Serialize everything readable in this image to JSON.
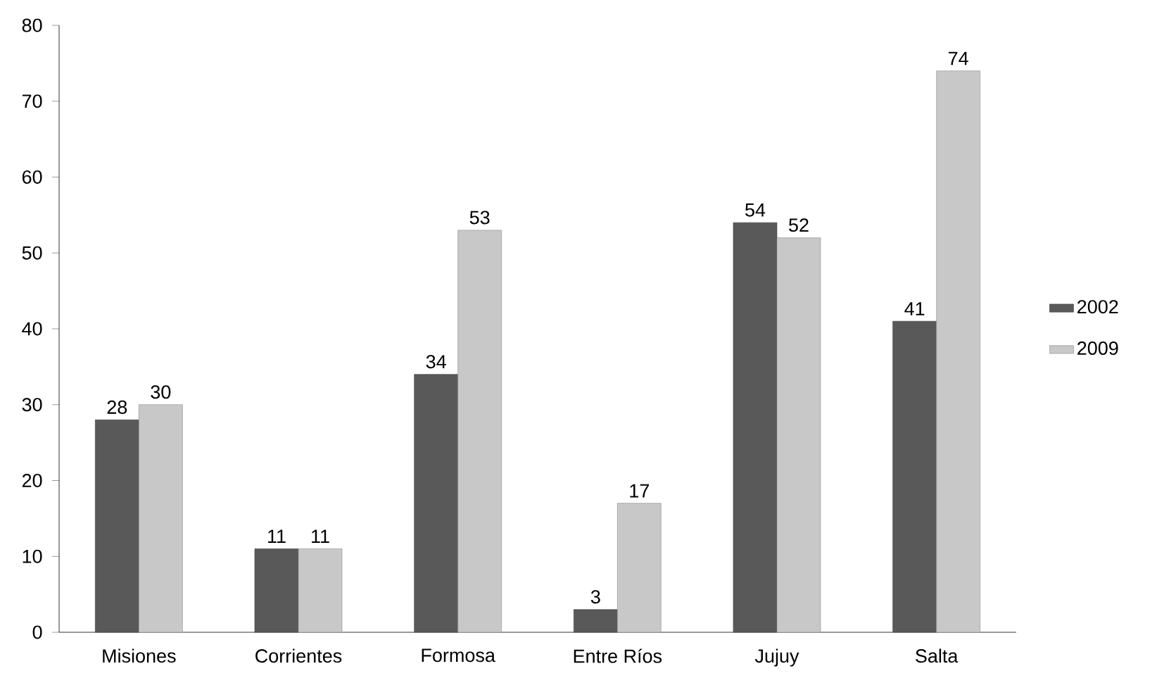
{
  "chart_data": {
    "type": "bar",
    "categories": [
      "Misiones",
      "Corrientes",
      "Formosa",
      "Entre Ríos",
      "Jujuy",
      "Salta"
    ],
    "series": [
      {
        "name": "2002",
        "color": "#595959",
        "values": [
          28,
          11,
          34,
          3,
          54,
          41
        ]
      },
      {
        "name": "2009",
        "color": "#c8c8c8",
        "values": [
          30,
          11,
          53,
          17,
          52,
          74
        ]
      }
    ],
    "ylim": [
      0,
      80
    ],
    "yticks": [
      0,
      10,
      20,
      30,
      40,
      50,
      60,
      70,
      80
    ],
    "data_labels": true,
    "legend": "right",
    "grid": false
  }
}
